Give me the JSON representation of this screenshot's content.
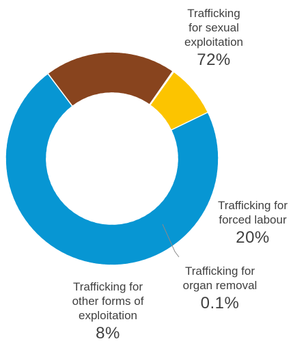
{
  "chart_data": {
    "type": "pie",
    "categories": [
      "Trafficking for sexual exploitation",
      "Trafficking for forced labour",
      "Trafficking for organ removal",
      "Trafficking for other forms of exploitation"
    ],
    "values": [
      72,
      20,
      0.1,
      8
    ],
    "value_labels": [
      "72%",
      "20%",
      "0.1%",
      "8%"
    ],
    "label_lines": [
      [
        "Trafficking",
        "for sexual",
        "exploitation"
      ],
      [
        "Trafficking for",
        "forced labour"
      ],
      [
        "Trafficking for",
        "organ removal"
      ],
      [
        "Trafficking for",
        "other forms of",
        "exploitation"
      ]
    ],
    "colors": [
      "#0796d3",
      "#88441e",
      "#6d6d6d",
      "#fcc400"
    ],
    "donut": true,
    "title": "",
    "legend": "none"
  }
}
